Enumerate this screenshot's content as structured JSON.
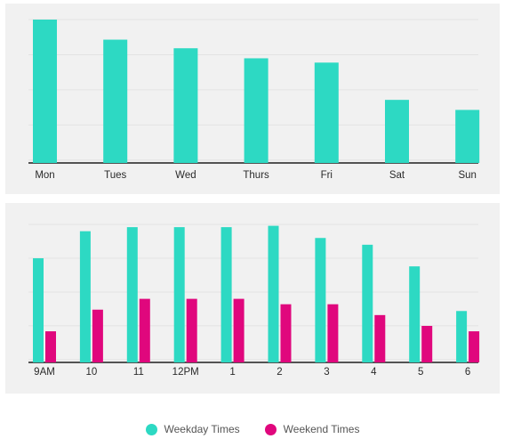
{
  "colors": {
    "weekday": "#2dd9c3",
    "weekend": "#e0077d",
    "grid": "#e3e3e3",
    "axis": "#1f1f1f",
    "panel_bg": "#f1f1f1"
  },
  "legend": {
    "weekday_label": "Weekday Times",
    "weekend_label": "Weekend Times"
  },
  "chart_data": [
    {
      "type": "bar",
      "categories": [
        "Mon",
        "Tues",
        "Wed",
        "Thurs",
        "Fri",
        "Sat",
        "Sun"
      ],
      "series": [
        {
          "values": [
            100,
            86,
            80,
            73,
            70,
            44,
            37
          ]
        }
      ],
      "ylim": [
        0,
        100
      ],
      "grid": true
    },
    {
      "type": "bar",
      "categories": [
        "9AM",
        "10",
        "11",
        "12PM",
        "1",
        "2",
        "3",
        "4",
        "5",
        "6"
      ],
      "series": [
        {
          "name": "Weekday Times",
          "values": [
            77,
            97,
            100,
            100,
            100,
            101,
            92,
            87,
            71,
            38
          ]
        },
        {
          "name": "Weekend Times",
          "values": [
            23,
            39,
            47,
            47,
            47,
            43,
            43,
            35,
            27,
            23
          ]
        }
      ],
      "ylim": [
        0,
        100
      ],
      "grid": true
    }
  ]
}
